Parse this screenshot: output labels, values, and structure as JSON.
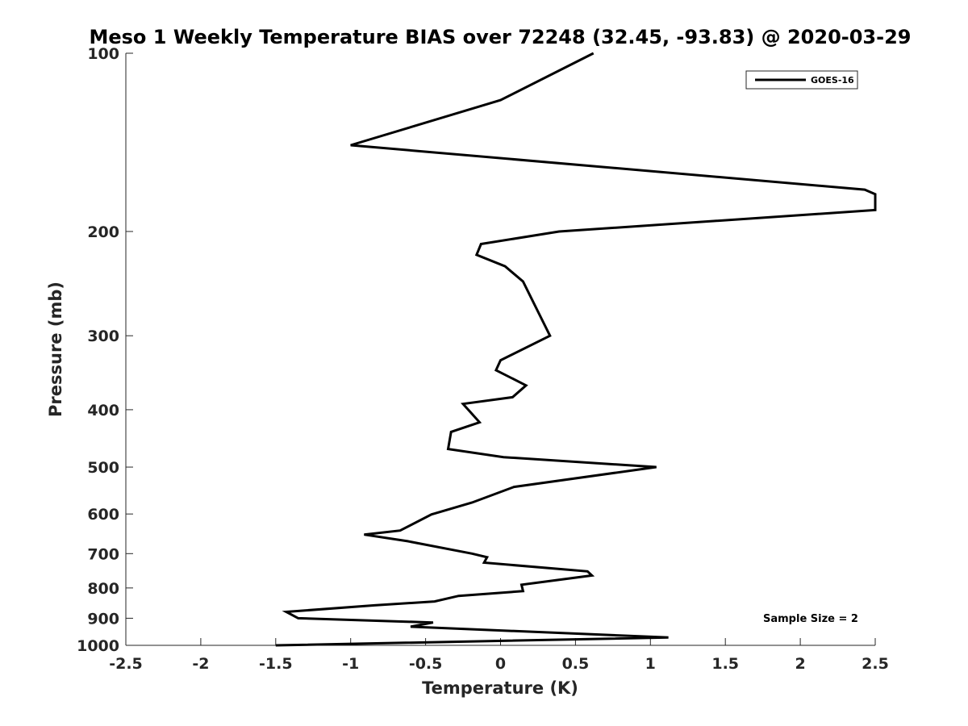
{
  "chart_data": {
    "type": "line",
    "title": "Meso 1 Weekly Temperature BIAS over 72248 (32.45, -93.83) @ 2020-03-29",
    "xlabel": "Temperature (K)",
    "ylabel": "Pressure (mb)",
    "xlim": [
      -2.5,
      2.5
    ],
    "ylim": [
      100,
      1000
    ],
    "y_scale": "log",
    "y_reversed": true,
    "grid": false,
    "x_ticks": [
      "-2.5",
      "-2",
      "-1.5",
      "-1",
      "-0.5",
      "0",
      "0.5",
      "1",
      "1.5",
      "2",
      "2.5"
    ],
    "x_tick_values": [
      -2.5,
      -2,
      -1.5,
      -1,
      -0.5,
      0,
      0.5,
      1,
      1.5,
      2,
      2.5
    ],
    "y_ticks": [
      "100",
      "200",
      "300",
      "400",
      "500",
      "600",
      "700",
      "800",
      "900",
      "1000"
    ],
    "y_tick_values": [
      100,
      200,
      300,
      400,
      500,
      600,
      700,
      800,
      900,
      1000
    ],
    "legend": {
      "position": "top-right",
      "entries": [
        "GOES-16"
      ]
    },
    "annotation": "Sample Size = 2",
    "series": [
      {
        "name": "GOES-16",
        "color": "#000000",
        "x": [
          0.62,
          0.0,
          -1.0,
          2.43,
          2.5,
          2.5,
          0.39,
          -0.13,
          -0.16,
          0.03,
          0.15,
          0.33,
          0.0,
          -0.03,
          0.17,
          0.08,
          -0.25,
          -0.14,
          -0.33,
          -0.35,
          0.02,
          1.04,
          0.09,
          -0.19,
          -0.46,
          -0.67,
          -0.91,
          -0.62,
          -0.19,
          -0.09,
          -0.11,
          0.58,
          0.61,
          0.14,
          0.15,
          -0.28,
          -0.44,
          -0.84,
          -1.43,
          -1.35,
          -0.45,
          -0.6,
          1.12,
          -1.5
        ],
        "y": [
          100,
          120,
          143,
          170,
          173,
          184,
          200,
          210,
          219,
          229,
          243,
          300,
          330,
          343,
          364,
          381,
          391,
          420,
          436,
          466,
          481,
          500,
          540,
          574,
          601,
          640,
          650,
          667,
          700,
          710,
          725,
          750,
          762,
          790,
          810,
          825,
          843,
          856,
          878,
          900,
          915,
          930,
          970,
          1000
        ]
      }
    ]
  }
}
